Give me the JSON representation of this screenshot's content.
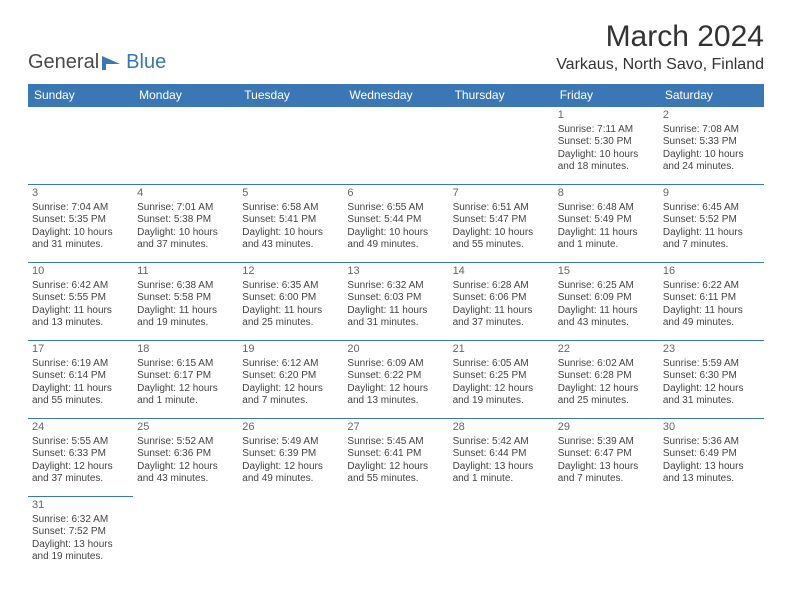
{
  "logo": {
    "part1": "General",
    "part2": "Blue"
  },
  "title": "March 2024",
  "location": "Varkaus, North Savo, Finland",
  "colors": {
    "header_bg": "#3a77b4",
    "header_text": "#ffffff",
    "border": "#3a77b4",
    "body_text": "#444444",
    "daynum": "#666666",
    "background": "#ffffff"
  },
  "typography": {
    "title_fontsize": 30,
    "location_fontsize": 16,
    "th_fontsize": 12,
    "cell_fontsize": 10,
    "daynum_fontsize": 11
  },
  "weekdays": [
    "Sunday",
    "Monday",
    "Tuesday",
    "Wednesday",
    "Thursday",
    "Friday",
    "Saturday"
  ],
  "cells": [
    [
      null,
      null,
      null,
      null,
      null,
      {
        "d": "1",
        "sr": "Sunrise: 7:11 AM",
        "ss": "Sunset: 5:30 PM",
        "dl": "Daylight: 10 hours and 18 minutes."
      },
      {
        "d": "2",
        "sr": "Sunrise: 7:08 AM",
        "ss": "Sunset: 5:33 PM",
        "dl": "Daylight: 10 hours and 24 minutes."
      }
    ],
    [
      {
        "d": "3",
        "sr": "Sunrise: 7:04 AM",
        "ss": "Sunset: 5:35 PM",
        "dl": "Daylight: 10 hours and 31 minutes."
      },
      {
        "d": "4",
        "sr": "Sunrise: 7:01 AM",
        "ss": "Sunset: 5:38 PM",
        "dl": "Daylight: 10 hours and 37 minutes."
      },
      {
        "d": "5",
        "sr": "Sunrise: 6:58 AM",
        "ss": "Sunset: 5:41 PM",
        "dl": "Daylight: 10 hours and 43 minutes."
      },
      {
        "d": "6",
        "sr": "Sunrise: 6:55 AM",
        "ss": "Sunset: 5:44 PM",
        "dl": "Daylight: 10 hours and 49 minutes."
      },
      {
        "d": "7",
        "sr": "Sunrise: 6:51 AM",
        "ss": "Sunset: 5:47 PM",
        "dl": "Daylight: 10 hours and 55 minutes."
      },
      {
        "d": "8",
        "sr": "Sunrise: 6:48 AM",
        "ss": "Sunset: 5:49 PM",
        "dl": "Daylight: 11 hours and 1 minute."
      },
      {
        "d": "9",
        "sr": "Sunrise: 6:45 AM",
        "ss": "Sunset: 5:52 PM",
        "dl": "Daylight: 11 hours and 7 minutes."
      }
    ],
    [
      {
        "d": "10",
        "sr": "Sunrise: 6:42 AM",
        "ss": "Sunset: 5:55 PM",
        "dl": "Daylight: 11 hours and 13 minutes."
      },
      {
        "d": "11",
        "sr": "Sunrise: 6:38 AM",
        "ss": "Sunset: 5:58 PM",
        "dl": "Daylight: 11 hours and 19 minutes."
      },
      {
        "d": "12",
        "sr": "Sunrise: 6:35 AM",
        "ss": "Sunset: 6:00 PM",
        "dl": "Daylight: 11 hours and 25 minutes."
      },
      {
        "d": "13",
        "sr": "Sunrise: 6:32 AM",
        "ss": "Sunset: 6:03 PM",
        "dl": "Daylight: 11 hours and 31 minutes."
      },
      {
        "d": "14",
        "sr": "Sunrise: 6:28 AM",
        "ss": "Sunset: 6:06 PM",
        "dl": "Daylight: 11 hours and 37 minutes."
      },
      {
        "d": "15",
        "sr": "Sunrise: 6:25 AM",
        "ss": "Sunset: 6:09 PM",
        "dl": "Daylight: 11 hours and 43 minutes."
      },
      {
        "d": "16",
        "sr": "Sunrise: 6:22 AM",
        "ss": "Sunset: 6:11 PM",
        "dl": "Daylight: 11 hours and 49 minutes."
      }
    ],
    [
      {
        "d": "17",
        "sr": "Sunrise: 6:19 AM",
        "ss": "Sunset: 6:14 PM",
        "dl": "Daylight: 11 hours and 55 minutes."
      },
      {
        "d": "18",
        "sr": "Sunrise: 6:15 AM",
        "ss": "Sunset: 6:17 PM",
        "dl": "Daylight: 12 hours and 1 minute."
      },
      {
        "d": "19",
        "sr": "Sunrise: 6:12 AM",
        "ss": "Sunset: 6:20 PM",
        "dl": "Daylight: 12 hours and 7 minutes."
      },
      {
        "d": "20",
        "sr": "Sunrise: 6:09 AM",
        "ss": "Sunset: 6:22 PM",
        "dl": "Daylight: 12 hours and 13 minutes."
      },
      {
        "d": "21",
        "sr": "Sunrise: 6:05 AM",
        "ss": "Sunset: 6:25 PM",
        "dl": "Daylight: 12 hours and 19 minutes."
      },
      {
        "d": "22",
        "sr": "Sunrise: 6:02 AM",
        "ss": "Sunset: 6:28 PM",
        "dl": "Daylight: 12 hours and 25 minutes."
      },
      {
        "d": "23",
        "sr": "Sunrise: 5:59 AM",
        "ss": "Sunset: 6:30 PM",
        "dl": "Daylight: 12 hours and 31 minutes."
      }
    ],
    [
      {
        "d": "24",
        "sr": "Sunrise: 5:55 AM",
        "ss": "Sunset: 6:33 PM",
        "dl": "Daylight: 12 hours and 37 minutes."
      },
      {
        "d": "25",
        "sr": "Sunrise: 5:52 AM",
        "ss": "Sunset: 6:36 PM",
        "dl": "Daylight: 12 hours and 43 minutes."
      },
      {
        "d": "26",
        "sr": "Sunrise: 5:49 AM",
        "ss": "Sunset: 6:39 PM",
        "dl": "Daylight: 12 hours and 49 minutes."
      },
      {
        "d": "27",
        "sr": "Sunrise: 5:45 AM",
        "ss": "Sunset: 6:41 PM",
        "dl": "Daylight: 12 hours and 55 minutes."
      },
      {
        "d": "28",
        "sr": "Sunrise: 5:42 AM",
        "ss": "Sunset: 6:44 PM",
        "dl": "Daylight: 13 hours and 1 minute."
      },
      {
        "d": "29",
        "sr": "Sunrise: 5:39 AM",
        "ss": "Sunset: 6:47 PM",
        "dl": "Daylight: 13 hours and 7 minutes."
      },
      {
        "d": "30",
        "sr": "Sunrise: 5:36 AM",
        "ss": "Sunset: 6:49 PM",
        "dl": "Daylight: 13 hours and 13 minutes."
      }
    ],
    [
      {
        "d": "31",
        "sr": "Sunrise: 6:32 AM",
        "ss": "Sunset: 7:52 PM",
        "dl": "Daylight: 13 hours and 19 minutes."
      },
      null,
      null,
      null,
      null,
      null,
      null
    ]
  ]
}
